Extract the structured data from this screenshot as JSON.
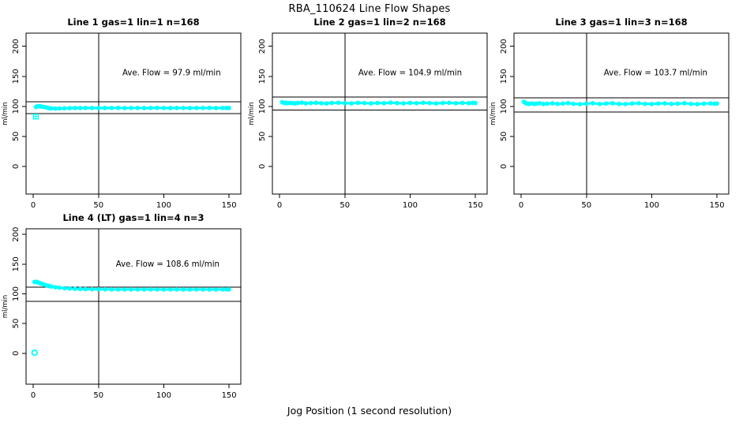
{
  "page": {
    "title": "RBA_110624  Line Flow Shapes",
    "xlabel": "Jog Position (1 second resolution)",
    "background": "#ffffff",
    "accent_color": "#00ffff",
    "axis_color": "#000000"
  },
  "chart_data": [
    {
      "type": "scatter",
      "title": "Line 1 gas=1 lin=1 n=168",
      "annotation": "Ave. Flow =  97.9  ml/min",
      "ave_flow": 97.9,
      "ylabel": "ml/min",
      "x_ticks": [
        0,
        50,
        100,
        150
      ],
      "y_ticks": [
        0,
        50,
        100,
        150,
        200
      ],
      "xlim": [
        -5.5,
        159
      ],
      "ylim": [
        -46,
        222
      ],
      "grid": false,
      "vline_x": 50,
      "hlines": [
        108,
        88
      ],
      "series_color": "#00ffff",
      "annotation_xy": [
        106,
        152
      ],
      "x": [
        2,
        3,
        4,
        5,
        6,
        8,
        10,
        12,
        14,
        17,
        20,
        24,
        28,
        32,
        36,
        40,
        45,
        50,
        55,
        60,
        65,
        70,
        75,
        80,
        85,
        90,
        95,
        100,
        105,
        110,
        115,
        120,
        125,
        130,
        135,
        140,
        145,
        148,
        150
      ],
      "y": [
        99,
        100,
        100.4,
        100.2,
        99.8,
        99.2,
        98.2,
        97.2,
        96.6,
        96.4,
        96.6,
        96.9,
        97.1,
        97.3,
        97.2,
        97.4,
        97.3,
        97.2,
        97.4,
        97.3,
        97.5,
        97.2,
        97.3,
        97.4,
        97.2,
        97.3,
        97.5,
        97.3,
        97.2,
        97.4,
        97.3,
        97.2,
        97.4,
        97.3,
        97.5,
        97.2,
        97.3,
        97.4,
        97.3
      ],
      "outliers": [
        {
          "x": 2,
          "y": 83,
          "marker": "square-plus"
        }
      ]
    },
    {
      "type": "scatter",
      "title": "Line 2 gas=1 lin=2 n=168",
      "annotation": "Ave. Flow =  104.9  ml/min",
      "ave_flow": 104.9,
      "ylabel": "ml/min",
      "x_ticks": [
        0,
        50,
        100,
        150
      ],
      "y_ticks": [
        0,
        50,
        100,
        150,
        200
      ],
      "xlim": [
        -5.5,
        159
      ],
      "ylim": [
        -46,
        222
      ],
      "grid": false,
      "vline_x": 50,
      "hlines": [
        115.5,
        94
      ],
      "series_color": "#00ffff",
      "annotation_xy": [
        100,
        152
      ],
      "x": [
        2,
        3,
        4,
        5,
        6,
        8,
        10,
        12,
        14,
        17,
        20,
        24,
        28,
        32,
        36,
        40,
        45,
        50,
        55,
        60,
        65,
        70,
        75,
        80,
        85,
        90,
        95,
        100,
        105,
        110,
        115,
        120,
        125,
        130,
        135,
        140,
        145,
        148,
        150
      ],
      "y": [
        107,
        106.3,
        105.6,
        106.1,
        105.3,
        105.9,
        105.4,
        104.9,
        105.8,
        106.2,
        105.1,
        105.6,
        106,
        105.3,
        104.9,
        105.7,
        106.1,
        105.4,
        105,
        106,
        105.6,
        104.9,
        105.8,
        105.2,
        106.2,
        105.5,
        105,
        105.9,
        105.3,
        106.1,
        105.6,
        104.9,
        105.7,
        106,
        105.2,
        105.8,
        105.4,
        106,
        105.5
      ],
      "outliers": []
    },
    {
      "type": "scatter",
      "title": "Line 3 gas=1 lin=3 n=168",
      "annotation": "Ave. Flow =  103.7  ml/min",
      "ave_flow": 103.7,
      "ylabel": "ml/min",
      "x_ticks": [
        0,
        50,
        100,
        150
      ],
      "y_ticks": [
        0,
        50,
        100,
        150,
        200
      ],
      "xlim": [
        -5.5,
        159
      ],
      "ylim": [
        -46,
        222
      ],
      "grid": false,
      "vline_x": 50,
      "hlines": [
        114,
        90.5
      ],
      "series_color": "#00ffff",
      "annotation_xy": [
        103,
        152
      ],
      "x": [
        2,
        3,
        4,
        5,
        6,
        8,
        10,
        12,
        14,
        17,
        20,
        24,
        28,
        32,
        36,
        40,
        45,
        50,
        55,
        60,
        65,
        70,
        75,
        80,
        85,
        90,
        95,
        100,
        105,
        110,
        115,
        120,
        125,
        130,
        135,
        140,
        145,
        148,
        150
      ],
      "y": [
        107.5,
        106.2,
        105.1,
        104.6,
        104.1,
        105,
        104,
        104.7,
        105.3,
        103.9,
        104.5,
        105.1,
        104.1,
        104.8,
        105.4,
        104.2,
        103.8,
        104.6,
        105.2,
        104,
        104.7,
        105.3,
        104.1,
        103.9,
        104.8,
        105.3,
        104.2,
        104,
        104.7,
        105.1,
        104.1,
        104.6,
        105.2,
        104.2,
        103.8,
        104.5,
        105,
        104.4,
        104.7
      ],
      "outliers": []
    },
    {
      "type": "scatter",
      "title": "Line 4 (LT) gas=1 lin=4 n=3",
      "annotation": "Ave. Flow =  108.6  ml/min",
      "ave_flow": 108.6,
      "ylabel": "ml/min",
      "x_ticks": [
        0,
        50,
        100,
        150
      ],
      "y_ticks": [
        0,
        50,
        100,
        150,
        200
      ],
      "xlim": [
        -5.5,
        159
      ],
      "ylim": [
        -52,
        209.5
      ],
      "grid": false,
      "vline_x": 50,
      "hlines": [
        111,
        87.5
      ],
      "series_color": "#00ffff",
      "annotation_xy": [
        103,
        146
      ],
      "x": [
        1,
        2,
        3,
        4,
        5,
        6,
        8,
        10,
        12,
        14,
        17,
        20,
        24,
        28,
        32,
        36,
        40,
        45,
        50,
        55,
        60,
        65,
        70,
        75,
        80,
        85,
        90,
        95,
        100,
        105,
        110,
        115,
        120,
        125,
        130,
        135,
        140,
        145,
        148,
        150
      ],
      "y": [
        120,
        120.2,
        119.7,
        119,
        118.2,
        117.4,
        115.9,
        114.5,
        113.3,
        112.3,
        111.2,
        110.4,
        109.5,
        108.9,
        108.5,
        108.2,
        108,
        107.8,
        107.7,
        107.6,
        107.5,
        107.5,
        107.4,
        107.5,
        107.4,
        107.4,
        107.5,
        107.4,
        107.3,
        107.4,
        107.5,
        107.4,
        107.3,
        107.4,
        107.4,
        107.3,
        107.4,
        107.5,
        107.4,
        107.5
      ],
      "outliers": [
        {
          "x": 1,
          "y": 1,
          "marker": "circle"
        }
      ]
    }
  ]
}
